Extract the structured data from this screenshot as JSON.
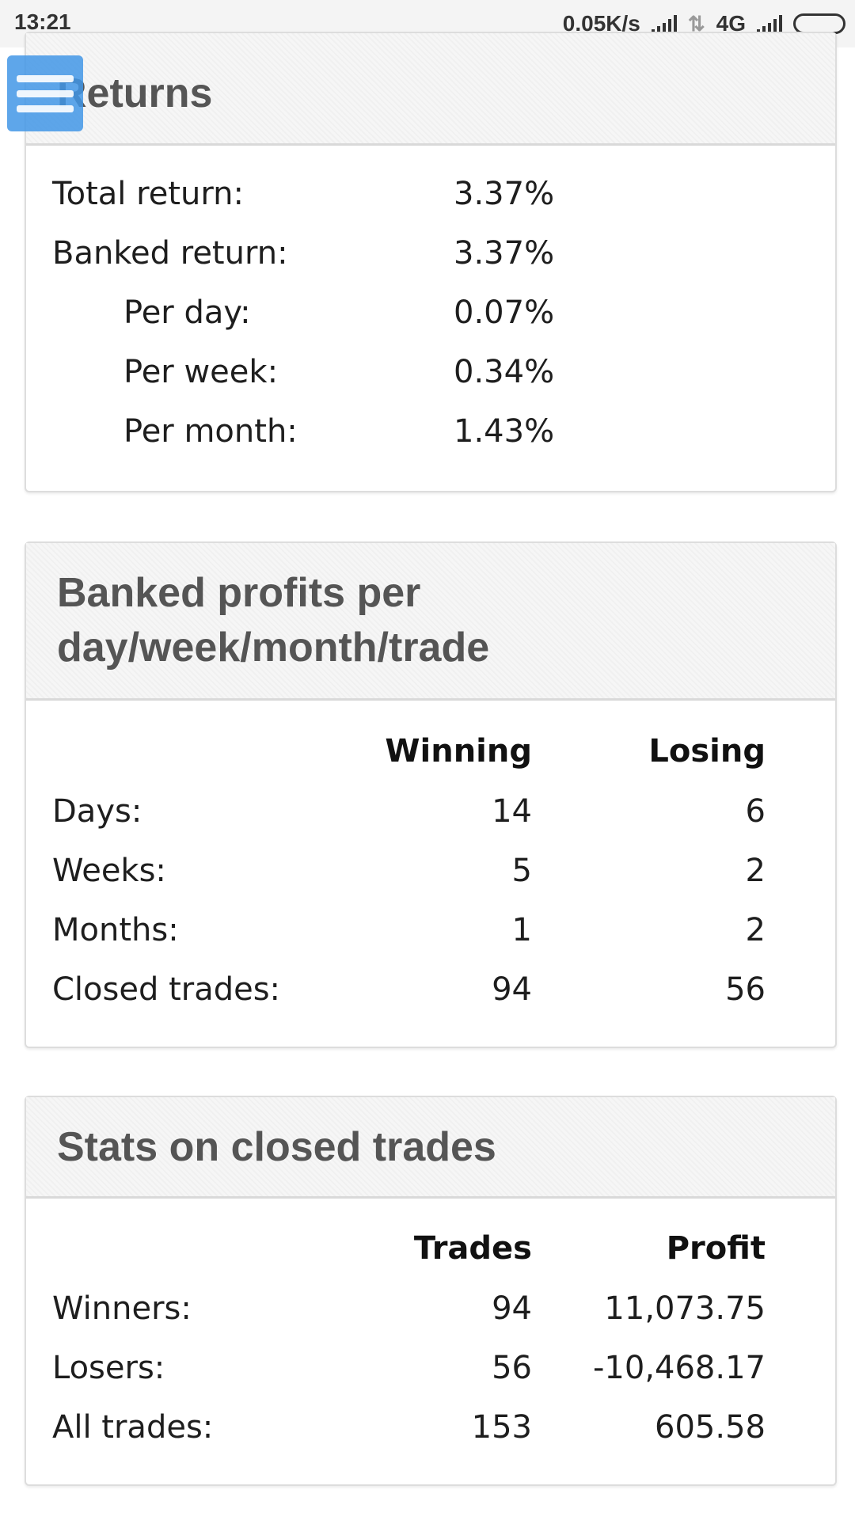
{
  "status_bar": {
    "time": "13:21",
    "speed": "0.05K/s",
    "network": "4G"
  },
  "returns": {
    "title": "Returns",
    "rows": [
      {
        "label": "Total return:",
        "value": "3.37%"
      },
      {
        "label": "Banked return:",
        "value": "3.37%"
      },
      {
        "label": "Per day:",
        "value": "0.07%"
      },
      {
        "label": "Per week:",
        "value": "0.34%"
      },
      {
        "label": "Per month:",
        "value": "1.43%"
      }
    ]
  },
  "banked": {
    "title_line1": "Banked profits per",
    "title_line2": "day/week/month/trade",
    "col1": "Winning",
    "col2": "Losing",
    "rows": [
      {
        "label": "Days:",
        "winning": "14",
        "losing": "6"
      },
      {
        "label": "Weeks:",
        "winning": "5",
        "losing": "2"
      },
      {
        "label": "Months:",
        "winning": "1",
        "losing": "2"
      },
      {
        "label": "Closed trades:",
        "winning": "94",
        "losing": "56"
      }
    ]
  },
  "stats": {
    "title": "Stats on closed trades",
    "col1": "Trades",
    "col2": "Profit",
    "rows": [
      {
        "label": "Winners:",
        "trades": "94",
        "profit": "11,073.75"
      },
      {
        "label": "Losers:",
        "trades": "56",
        "profit": "-10,468.17"
      },
      {
        "label": "All trades:",
        "trades": "153",
        "profit": "605.58"
      }
    ]
  }
}
